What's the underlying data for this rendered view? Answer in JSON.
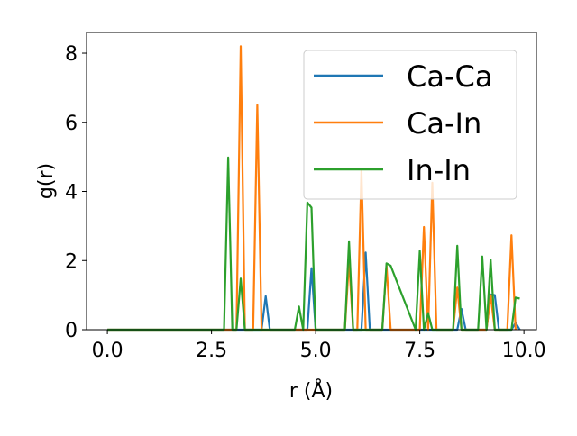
{
  "chart_data": {
    "type": "line",
    "xlabel": "r (Å)",
    "ylabel": "g(r)",
    "xlim": [
      -0.5,
      10.3
    ],
    "ylim": [
      0,
      8.6
    ],
    "xticks": [
      0.0,
      2.5,
      5.0,
      7.5,
      10.0
    ],
    "xtick_labels": [
      "0.0",
      "2.5",
      "5.0",
      "7.5",
      "10.0"
    ],
    "yticks": [
      0,
      2,
      4,
      6,
      8
    ],
    "ytick_labels": [
      "0",
      "2",
      "4",
      "6",
      "8"
    ],
    "grid": false,
    "legend_position": "top-right",
    "series": [
      {
        "name": "Ca-Ca",
        "color": "#1f77b4",
        "x": [
          0.0,
          3.7,
          3.8,
          3.9,
          4.8,
          4.9,
          5.0,
          6.0,
          6.1,
          6.2,
          6.3,
          8.4,
          8.5,
          8.6,
          9.1,
          9.2,
          9.3,
          9.4,
          9.7,
          9.8,
          9.9
        ],
        "y": [
          0,
          0,
          0.97,
          0,
          0,
          1.78,
          0,
          0,
          0,
          2.23,
          0,
          0,
          0.6,
          0,
          0,
          1.02,
          1.0,
          0,
          0,
          0.2,
          0
        ]
      },
      {
        "name": "Ca-In",
        "color": "#ff7f0e",
        "x": [
          0.0,
          3.1,
          3.2,
          3.3,
          3.5,
          3.6,
          3.7,
          5.7,
          5.8,
          5.9,
          6.0,
          6.1,
          6.2,
          6.6,
          6.7,
          6.8,
          7.5,
          7.6,
          7.7,
          7.8,
          7.9,
          8.3,
          8.4,
          8.5,
          9.1,
          9.2,
          9.3,
          9.6,
          9.7,
          9.8
        ],
        "y": [
          0,
          0,
          8.2,
          0,
          0,
          6.5,
          0,
          0,
          2.0,
          0,
          0,
          4.6,
          0,
          0,
          1.85,
          0,
          0,
          2.97,
          0,
          4.25,
          0,
          0,
          1.22,
          0,
          0,
          1.0,
          0,
          0,
          2.73,
          0
        ]
      },
      {
        "name": "In-In",
        "color": "#2ca02c",
        "x": [
          0.0,
          2.8,
          2.9,
          3.0,
          3.1,
          3.2,
          3.3,
          4.5,
          4.6,
          4.7,
          4.8,
          4.9,
          5.0,
          5.7,
          5.8,
          5.9,
          6.6,
          6.7,
          6.8,
          7.4,
          7.5,
          7.6,
          7.7,
          7.8,
          8.3,
          8.4,
          8.5,
          8.9,
          9.0,
          9.1,
          9.2,
          9.3,
          9.7,
          9.8,
          9.9
        ],
        "y": [
          0,
          0,
          4.98,
          0,
          0,
          1.48,
          0,
          0,
          0.67,
          0,
          3.68,
          3.53,
          0,
          0,
          2.56,
          0,
          0,
          1.92,
          1.85,
          0,
          2.28,
          0,
          0.48,
          0,
          0,
          2.43,
          0,
          0,
          2.12,
          0,
          2.03,
          0,
          0,
          0.93,
          0.9
        ]
      }
    ]
  }
}
